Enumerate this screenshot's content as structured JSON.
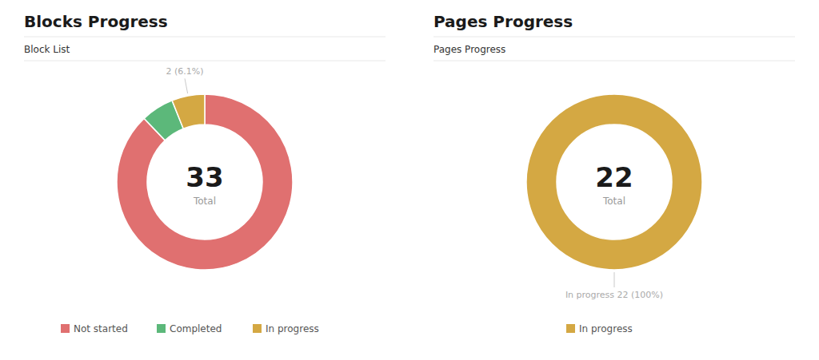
{
  "chart_data": [
    {
      "type": "donut",
      "title": "Blocks Progress",
      "subtitle": "Block List",
      "categories": [
        "Not started",
        "Completed",
        "In progress"
      ],
      "values": [
        29,
        2,
        2
      ],
      "colors": [
        "#e07070",
        "#5cb87a",
        "#d4a843"
      ],
      "total": 33,
      "total_label": "Total",
      "annotations": [
        "2 (6.1%)"
      ],
      "legend": "bottom"
    },
    {
      "type": "donut",
      "title": "Pages Progress",
      "subtitle": "Pages Progress",
      "categories": [
        "In progress"
      ],
      "values": [
        22
      ],
      "colors": [
        "#d4a843"
      ],
      "total": 22,
      "total_label": "Total",
      "annotations": [
        "In progress  22 (100%)"
      ],
      "legend": "bottom"
    }
  ]
}
